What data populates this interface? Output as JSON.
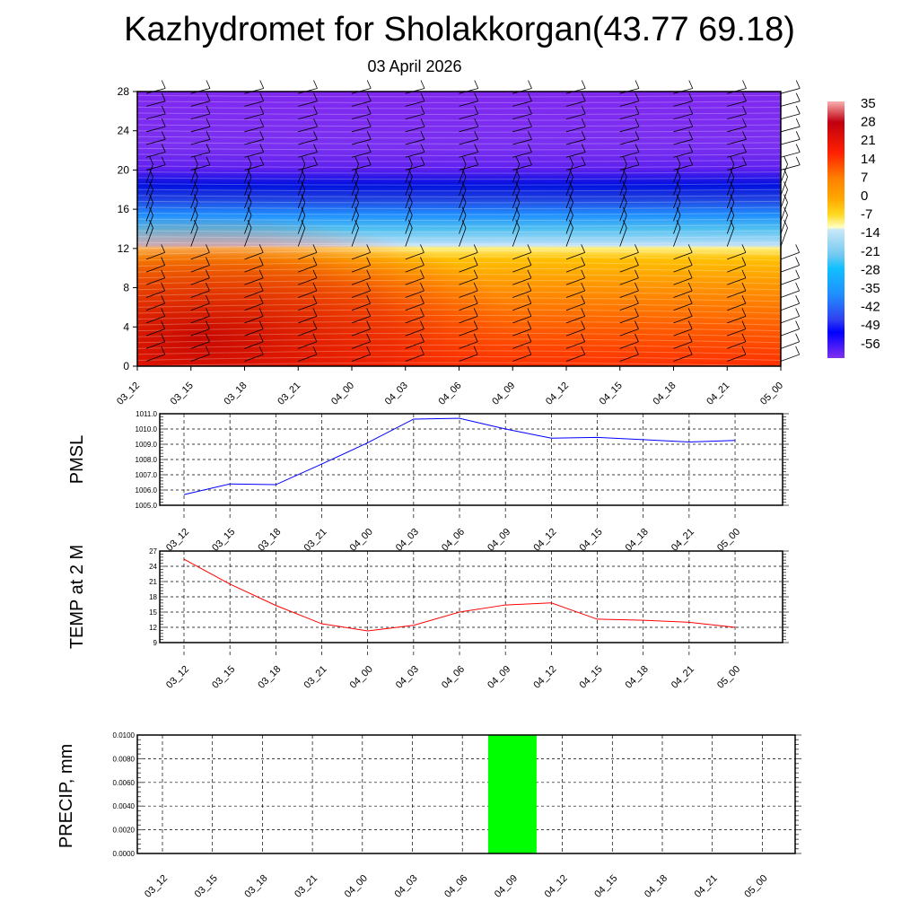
{
  "title": "Kazhydromet for Sholakkorgan(43.77 69.18)",
  "subtitle": "03 April 2026",
  "chart_data": [
    {
      "type": "heatmap",
      "name": "upper-air temperature cross-section with wind barbs",
      "ylabel": "",
      "ylim": [
        0,
        28
      ],
      "yticks": [
        0,
        4,
        8,
        12,
        16,
        20,
        24,
        28
      ],
      "categories": [
        "03_12",
        "03_15",
        "03_18",
        "03_21",
        "04_00",
        "04_03",
        "04_06",
        "04_09",
        "04_12",
        "04_15",
        "04_18",
        "04_21",
        "05_00"
      ],
      "colorbar": {
        "labels": [
          "35",
          "28",
          "21",
          "14",
          "7",
          "0",
          "-7",
          "-14",
          "-21",
          "-28",
          "-35",
          "-42",
          "-49",
          "-56"
        ],
        "range": [
          -63,
          35
        ]
      },
      "profile": [
        {
          "h": 0,
          "t": 22
        },
        {
          "h": 4,
          "t": 14
        },
        {
          "h": 8,
          "t": 6
        },
        {
          "h": 11,
          "t": -2
        },
        {
          "h": 12.3,
          "t": -10
        },
        {
          "h": 12.6,
          "t": -16
        },
        {
          "h": 15,
          "t": -30
        },
        {
          "h": 17,
          "t": -45
        },
        {
          "h": 18.5,
          "t": -60
        },
        {
          "h": 21,
          "t": -55
        },
        {
          "h": 28,
          "t": -58
        }
      ]
    },
    {
      "type": "line",
      "ylabel": "PMSL",
      "ylim": [
        1005,
        1011
      ],
      "yticks": [
        "1005.0",
        "1006.0",
        "1007.0",
        "1008.0",
        "1009.0",
        "1010.0",
        "1011.0"
      ],
      "categories": [
        "03_12",
        "03_15",
        "03_18",
        "03_21",
        "04_00",
        "04_03",
        "04_06",
        "04_09",
        "04_12",
        "04_15",
        "04_18",
        "04_21",
        "05_00"
      ],
      "values": [
        1005.7,
        1006.4,
        1006.35,
        1007.7,
        1009.1,
        1010.65,
        1010.7,
        1010.0,
        1009.4,
        1009.45,
        1009.3,
        1009.15,
        1009.25
      ],
      "color": "#0000ff"
    },
    {
      "type": "line",
      "ylabel": "TEMP at 2 M",
      "ylim": [
        9,
        27
      ],
      "yticks": [
        "9",
        "12",
        "15",
        "18",
        "21",
        "24",
        "27"
      ],
      "categories": [
        "03_12",
        "03_15",
        "03_18",
        "03_21",
        "04_00",
        "04_03",
        "04_06",
        "04_09",
        "04_12",
        "04_15",
        "04_18",
        "04_21",
        "05_00"
      ],
      "values": [
        25.4,
        20.5,
        16.3,
        12.7,
        11.3,
        12.4,
        15.0,
        16.4,
        16.8,
        13.6,
        13.4,
        13.0,
        12.0
      ],
      "color": "#ff0000"
    },
    {
      "type": "bar",
      "ylabel": "PRECIP, mm",
      "ylim": [
        0,
        0.01
      ],
      "yticks": [
        "0.0000",
        "0.0020",
        "0.0040",
        "0.0060",
        "0.0080",
        "0.0100"
      ],
      "categories": [
        "03_12",
        "03_15",
        "03_18",
        "03_21",
        "04_00",
        "04_03",
        "04_06",
        "04_09",
        "04_12",
        "04_15",
        "04_18",
        "04_21",
        "05_00"
      ],
      "values": [
        0,
        0,
        0,
        0,
        0,
        0,
        0,
        0.01,
        0,
        0,
        0,
        0,
        0
      ],
      "color": "#00ff00"
    }
  ]
}
